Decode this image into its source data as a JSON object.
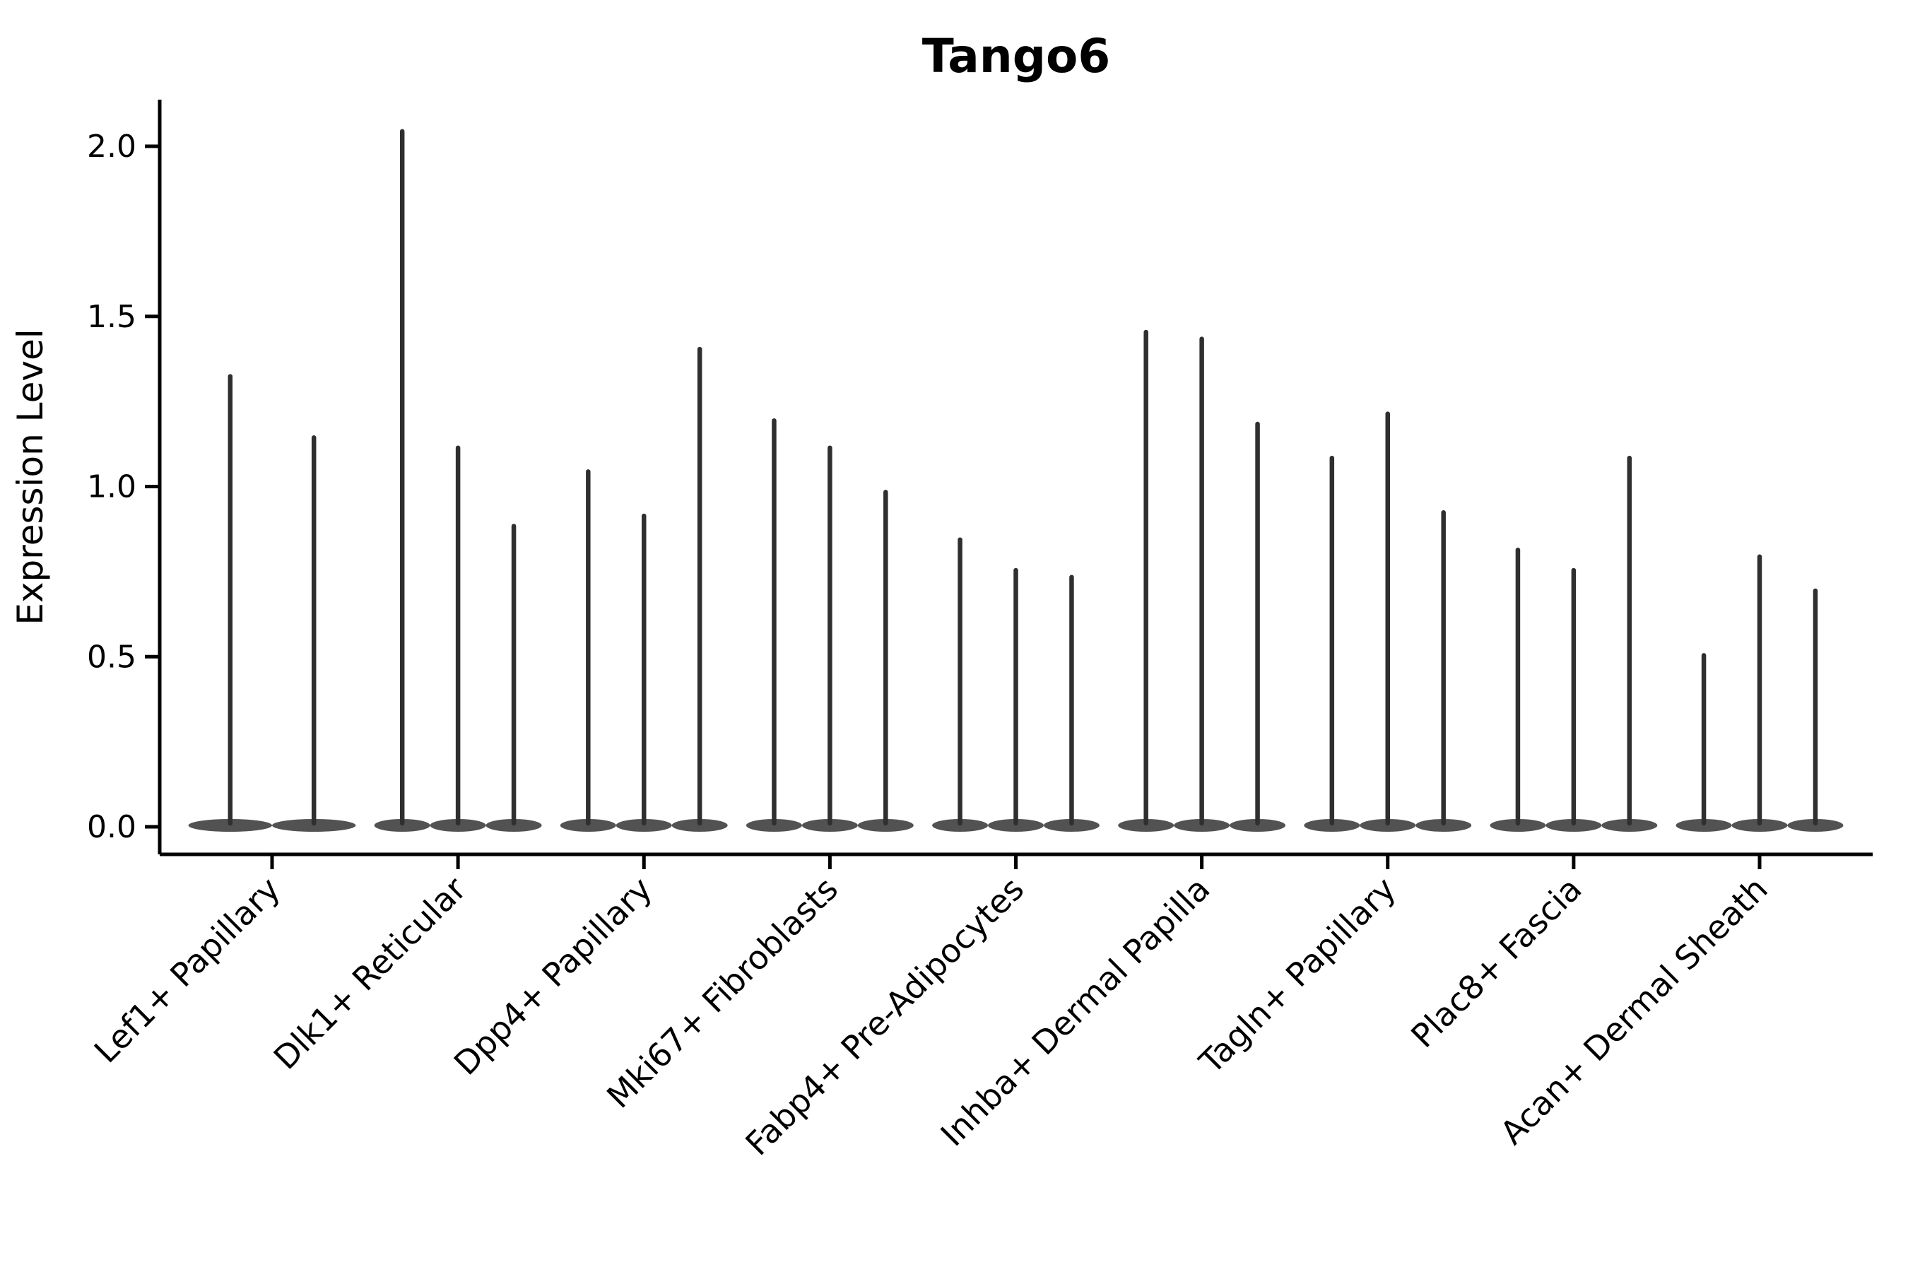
{
  "chart_data": {
    "type": "violin",
    "title": "Tango6",
    "ylabel": "Expression Level",
    "xlabel": "",
    "ylim": [
      -0.08,
      2.14
    ],
    "yticks": [
      0.0,
      0.5,
      1.0,
      1.5,
      2.0
    ],
    "grid": false,
    "legend_position": "none",
    "x_tick_rotation": 45,
    "categories": [
      "Lef1+ Papillary",
      "Dlk1+ Reticular",
      "Dpp4+ Papillary",
      "Mki67+ Fibroblasts",
      "Fabp4+ Pre-Adipocytes",
      "Inhba+ Dermal Papilla",
      "Tagln+ Papillary",
      "Plac8+ Fascia",
      "Acan+ Dermal Sheath"
    ],
    "series": [
      {
        "category": "Lef1+ Papillary",
        "violin_peaks": [
          1.33,
          1.15
        ]
      },
      {
        "category": "Dlk1+ Reticular",
        "violin_peaks": [
          2.05,
          1.12,
          0.89
        ]
      },
      {
        "category": "Dpp4+ Papillary",
        "violin_peaks": [
          1.05,
          0.92,
          1.41
        ]
      },
      {
        "category": "Mki67+ Fibroblasts",
        "violin_peaks": [
          1.2,
          1.12,
          0.99
        ]
      },
      {
        "category": "Fabp4+ Pre-Adipocytes",
        "violin_peaks": [
          0.85,
          0.76,
          0.74
        ]
      },
      {
        "category": "Inhba+ Dermal Papilla",
        "violin_peaks": [
          1.46,
          1.44,
          1.19
        ]
      },
      {
        "category": "Tagln+ Papillary",
        "violin_peaks": [
          1.09,
          1.22,
          0.93
        ]
      },
      {
        "category": "Plac8+ Fascia",
        "violin_peaks": [
          0.82,
          0.76,
          1.09
        ]
      },
      {
        "category": "Acan+ Dermal Sheath",
        "violin_peaks": [
          0.51,
          0.8,
          0.7
        ]
      }
    ],
    "colors": {
      "violin_line": "#2f2f2f",
      "violin_base": "#3a3a3a",
      "axis": "#000000",
      "text": "#000000",
      "background": "#ffffff"
    }
  }
}
